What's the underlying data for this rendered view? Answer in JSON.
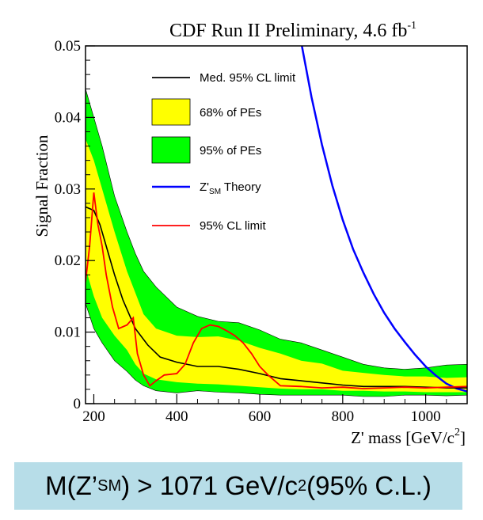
{
  "chart_data": {
    "type": "line",
    "title": "CDF Run II Preliminary, 4.6 fb",
    "title_superscript": "-1",
    "xlabel": "Z' mass [GeV/c",
    "xlabel_superscript": "2",
    "xlabel_close": "]",
    "ylabel": "Signal Fraction",
    "xlim": [
      180,
      1100
    ],
    "ylim": [
      0,
      0.05
    ],
    "x_ticks": [
      200,
      400,
      600,
      800,
      1000
    ],
    "y_ticks": [
      0,
      0.01,
      0.02,
      0.03,
      0.04,
      0.05
    ],
    "x_tick_labels": [
      "200",
      "400",
      "600",
      "800",
      "1000"
    ],
    "y_tick_labels": [
      "0",
      "0.01",
      "0.02",
      "0.03",
      "0.04",
      "0.05"
    ],
    "legend_position": "top-center",
    "legend": [
      {
        "key": "median",
        "label": "Med. 95% CL limit"
      },
      {
        "key": "band68",
        "label": "68% of PEs"
      },
      {
        "key": "band95",
        "label": "95% of PEs"
      },
      {
        "key": "theory",
        "label_prefix": "Z'",
        "label_subscript": "SM",
        "label_suffix": " Theory"
      },
      {
        "key": "observed",
        "label": "95% CL limit"
      }
    ],
    "colors": {
      "median": "#000000",
      "band68": "#ffff00",
      "band95": "#00ff00",
      "theory": "#0000ff",
      "observed": "#ff0000",
      "band_edge": "#000000"
    },
    "band_x": [
      180,
      200,
      220,
      250,
      280,
      300,
      320,
      350,
      400,
      450,
      500,
      550,
      600,
      650,
      700,
      750,
      800,
      850,
      900,
      950,
      1000,
      1050,
      1100
    ],
    "band95_upper": [
      0.044,
      0.04,
      0.036,
      0.029,
      0.024,
      0.021,
      0.0185,
      0.0163,
      0.0135,
      0.0122,
      0.0115,
      0.0113,
      0.0103,
      0.009,
      0.0085,
      0.0075,
      0.0065,
      0.0055,
      0.005,
      0.0048,
      0.005,
      0.0054,
      0.0055
    ],
    "band95_lower": [
      0.014,
      0.0105,
      0.0085,
      0.006,
      0.0045,
      0.0033,
      0.0025,
      0.0018,
      0.0015,
      0.0018,
      0.0016,
      0.0015,
      0.0013,
      0.0012,
      0.0012,
      0.0012,
      0.0012,
      0.001,
      0.001,
      0.0012,
      0.0012,
      0.0011,
      0.0012
    ],
    "band68_upper": [
      0.037,
      0.034,
      0.03,
      0.024,
      0.0185,
      0.0155,
      0.0125,
      0.0105,
      0.0095,
      0.0093,
      0.0094,
      0.0088,
      0.0078,
      0.007,
      0.006,
      0.0056,
      0.0046,
      0.0043,
      0.004,
      0.0038,
      0.0038,
      0.0036,
      0.0037
    ],
    "band68_lower": [
      0.019,
      0.015,
      0.012,
      0.0095,
      0.0075,
      0.0055,
      0.0042,
      0.0034,
      0.003,
      0.0028,
      0.0027,
      0.0025,
      0.0023,
      0.0021,
      0.002,
      0.002,
      0.0018,
      0.0018,
      0.0017,
      0.0017,
      0.0016,
      0.0016,
      0.0016
    ],
    "median": {
      "x": [
        180,
        200,
        215,
        230,
        250,
        270,
        300,
        330,
        360,
        400,
        450,
        500,
        550,
        600,
        650,
        700,
        750,
        800,
        850,
        900,
        950,
        1000,
        1050,
        1100
      ],
      "y": [
        0.0275,
        0.027,
        0.025,
        0.022,
        0.018,
        0.0145,
        0.0105,
        0.0082,
        0.0065,
        0.0058,
        0.0052,
        0.0052,
        0.0048,
        0.0042,
        0.0035,
        0.0032,
        0.0029,
        0.0026,
        0.0024,
        0.0024,
        0.0024,
        0.0023,
        0.0022,
        0.0022
      ]
    },
    "observed": {
      "x": [
        180,
        190,
        200,
        210,
        220,
        230,
        245,
        260,
        280,
        295,
        305,
        320,
        335,
        350,
        370,
        400,
        420,
        440,
        460,
        480,
        500,
        520,
        540,
        560,
        580,
        600,
        620,
        650,
        700,
        750,
        800,
        850,
        900,
        950,
        1000,
        1050,
        1100
      ],
      "y": [
        0.017,
        0.022,
        0.0295,
        0.025,
        0.022,
        0.018,
        0.0135,
        0.0105,
        0.011,
        0.012,
        0.007,
        0.004,
        0.0025,
        0.0032,
        0.004,
        0.0042,
        0.0055,
        0.0085,
        0.0105,
        0.011,
        0.0108,
        0.0102,
        0.0095,
        0.0085,
        0.007,
        0.0052,
        0.004,
        0.0025,
        0.0024,
        0.0022,
        0.0023,
        0.0021,
        0.0022,
        0.0023,
        0.0022,
        0.0023,
        0.0024
      ]
    },
    "theory": {
      "x": [
        700,
        725,
        750,
        775,
        800,
        825,
        850,
        875,
        900,
        925,
        950,
        975,
        1000,
        1025,
        1050,
        1075,
        1100
      ],
      "y": [
        0.0505,
        0.0428,
        0.0362,
        0.0305,
        0.0257,
        0.0216,
        0.0183,
        0.0153,
        0.0127,
        0.0105,
        0.0086,
        0.0068,
        0.0052,
        0.0039,
        0.0028,
        0.0021,
        0.0017
      ]
    }
  },
  "result": {
    "prefix": "M(Z’",
    "subscript": "SM",
    "middle": ") > 1071 GeV/c",
    "superscript": "2",
    "suffix": " (95% C.L.)"
  }
}
